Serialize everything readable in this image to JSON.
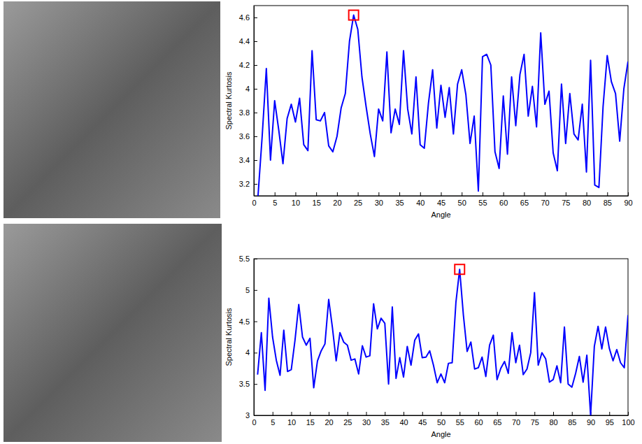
{
  "chart_data": [
    {
      "type": "line",
      "x_label": "Angle",
      "y_label": "Spectral Kurtosis",
      "x": [
        1,
        2,
        3,
        4,
        5,
        6,
        7,
        8,
        9,
        10,
        11,
        12,
        13,
        14,
        15,
        16,
        17,
        18,
        19,
        20,
        21,
        22,
        23,
        24,
        25,
        26,
        27,
        28,
        29,
        30,
        31,
        32,
        33,
        34,
        35,
        36,
        37,
        38,
        39,
        40,
        41,
        42,
        43,
        44,
        45,
        46,
        47,
        48,
        49,
        50,
        51,
        52,
        53,
        54,
        55,
        56,
        57,
        58,
        59,
        60,
        61,
        62,
        63,
        64,
        65,
        66,
        67,
        68,
        69,
        70,
        71,
        72,
        73,
        74,
        75,
        76,
        77,
        78,
        79,
        80,
        81,
        82,
        83,
        84,
        85,
        86,
        87,
        88,
        89,
        90
      ],
      "series": [
        {
          "color": "#0000ff",
          "values": [
            3.1,
            3.6,
            4.17,
            3.4,
            3.9,
            3.65,
            3.37,
            3.75,
            3.87,
            3.72,
            3.92,
            3.53,
            3.48,
            4.32,
            3.74,
            3.73,
            3.8,
            3.52,
            3.47,
            3.6,
            3.84,
            3.96,
            4.4,
            4.62,
            4.5,
            4.1,
            3.85,
            3.62,
            3.43,
            3.83,
            3.73,
            4.31,
            3.63,
            3.83,
            3.7,
            4.32,
            3.83,
            3.62,
            4.1,
            3.53,
            3.5,
            3.88,
            4.16,
            3.67,
            4.03,
            3.76,
            4.01,
            3.62,
            4.04,
            4.16,
            3.95,
            3.54,
            3.77,
            3.14,
            4.27,
            4.29,
            4.2,
            3.47,
            3.33,
            3.94,
            3.45,
            4.1,
            3.69,
            4.12,
            4.29,
            3.77,
            4.02,
            3.68,
            4.47,
            3.87,
            3.98,
            3.46,
            3.31,
            4.04,
            3.54,
            3.96,
            3.62,
            3.57,
            3.87,
            3.3,
            4.24,
            3.19,
            3.17,
            3.85,
            4.28,
            4.06,
            3.96,
            3.56,
            4.0,
            4.23
          ]
        },
        {
          "type": "scatter",
          "marker": "square",
          "color": "#ff0000",
          "x": [
            24
          ],
          "values": [
            4.62
          ]
        }
      ],
      "xlim": [
        0,
        90
      ],
      "xticks": [
        0,
        5,
        10,
        15,
        20,
        25,
        30,
        35,
        40,
        45,
        50,
        55,
        60,
        65,
        70,
        75,
        80,
        85,
        90
      ],
      "ylim": [
        3.1,
        4.7
      ],
      "yticks": [
        3.2,
        3.4,
        3.6,
        3.8,
        4,
        4.2,
        4.4,
        4.6
      ]
    },
    {
      "type": "line",
      "x_label": "Angle",
      "y_label": "Spectral Kurtosis",
      "x": [
        1,
        2,
        3,
        4,
        5,
        6,
        7,
        8,
        9,
        10,
        11,
        12,
        13,
        14,
        15,
        16,
        17,
        18,
        19,
        20,
        21,
        22,
        23,
        24,
        25,
        26,
        27,
        28,
        29,
        30,
        31,
        32,
        33,
        34,
        35,
        36,
        37,
        38,
        39,
        40,
        41,
        42,
        43,
        44,
        45,
        46,
        47,
        48,
        49,
        50,
        51,
        52,
        53,
        54,
        55,
        56,
        57,
        58,
        59,
        60,
        61,
        62,
        63,
        64,
        65,
        66,
        67,
        68,
        69,
        70,
        71,
        72,
        73,
        74,
        75,
        76,
        77,
        78,
        79,
        80,
        81,
        82,
        83,
        84,
        85,
        86,
        87,
        88,
        89,
        90,
        91,
        92,
        93,
        94,
        95,
        96,
        97,
        98,
        99,
        100
      ],
      "series": [
        {
          "color": "#0000ff",
          "values": [
            3.65,
            4.32,
            3.4,
            4.87,
            4.25,
            3.88,
            3.64,
            4.36,
            3.7,
            3.73,
            4.2,
            4.77,
            4.25,
            4.12,
            4.23,
            3.44,
            3.87,
            4.03,
            4.14,
            4.85,
            4.4,
            3.87,
            4.32,
            4.17,
            4.12,
            3.88,
            3.9,
            3.66,
            4.11,
            3.93,
            3.95,
            4.78,
            4.38,
            4.55,
            4.47,
            3.5,
            4.73,
            3.59,
            3.92,
            3.61,
            4.1,
            3.8,
            4.2,
            4.3,
            3.92,
            3.93,
            4.03,
            3.8,
            3.52,
            3.66,
            3.52,
            3.83,
            3.84,
            4.8,
            5.33,
            4.6,
            4.02,
            4.17,
            3.74,
            3.76,
            3.93,
            3.62,
            4.12,
            4.28,
            3.57,
            3.75,
            3.86,
            3.67,
            4.32,
            3.84,
            4.12,
            3.65,
            3.74,
            4.0,
            4.96,
            3.8,
            4.0,
            3.9,
            3.53,
            3.57,
            3.79,
            3.52,
            4.41,
            3.5,
            3.45,
            3.67,
            3.94,
            3.53,
            3.96,
            3.0,
            4.1,
            4.42,
            4.06,
            4.41,
            4.07,
            3.87,
            4.05,
            3.84,
            3.76,
            4.6
          ]
        },
        {
          "type": "scatter",
          "marker": "square",
          "color": "#ff0000",
          "x": [
            55
          ],
          "values": [
            5.33
          ]
        }
      ],
      "xlim": [
        0,
        100
      ],
      "xticks": [
        0,
        5,
        10,
        15,
        20,
        25,
        30,
        35,
        40,
        45,
        50,
        55,
        60,
        65,
        70,
        75,
        80,
        85,
        90,
        95,
        100
      ],
      "ylim": [
        3,
        5.5
      ],
      "yticks": [
        3,
        3.5,
        4,
        4.5,
        5,
        5.5
      ]
    }
  ]
}
